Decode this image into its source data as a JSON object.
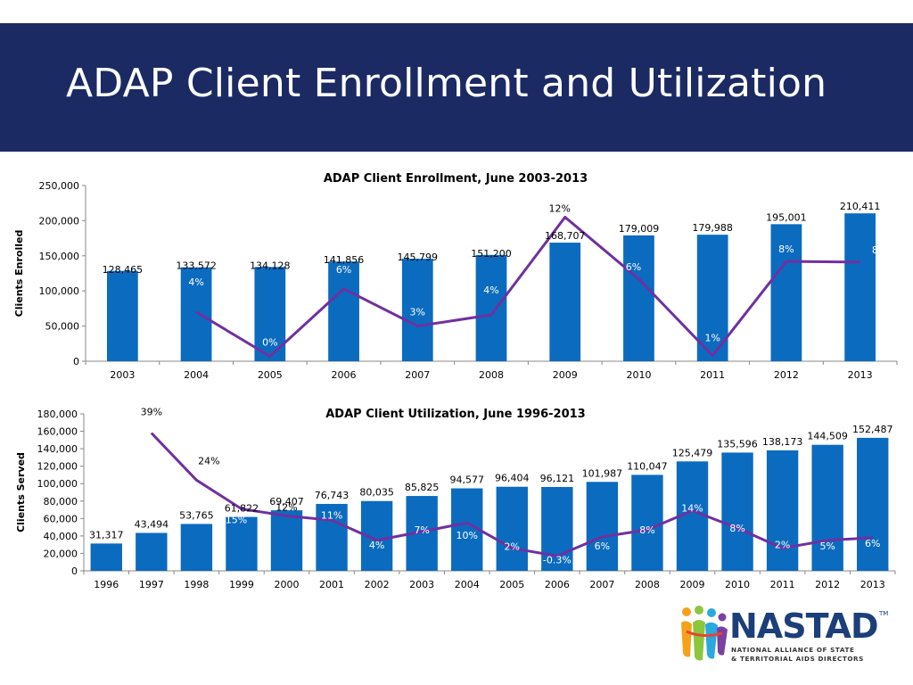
{
  "slide": {
    "title": "ADAP Client Enrollment and Utilization"
  },
  "logo": {
    "name": "NASTAD",
    "trademark": "TM",
    "line1": "NATIONAL ALLIANCE OF STATE",
    "line2": "& TERRITORIAL AIDS DIRECTORS"
  },
  "colors": {
    "header": "#1c2a63",
    "bar": "#0b6bbf",
    "line": "#7030a0"
  },
  "chart_data": [
    {
      "type": "bar",
      "title": "ADAP Client Enrollment, June 2003-2013",
      "xlabel": "",
      "ylabel": "Clients Enrolled",
      "ylim": [
        0,
        250000
      ],
      "yticks": [
        "0",
        "50,000",
        "100,000",
        "150,000",
        "200,000",
        "250,000"
      ],
      "ytick_values": [
        0,
        50000,
        100000,
        150000,
        200000,
        250000
      ],
      "categories": [
        "2003",
        "2004",
        "2005",
        "2006",
        "2007",
        "2008",
        "2009",
        "2010",
        "2011",
        "2012",
        "2013"
      ],
      "values": [
        128465,
        133572,
        134128,
        141856,
        145799,
        151200,
        168707,
        179009,
        179988,
        195001,
        210411
      ],
      "value_labels": [
        "128,465",
        "133,572",
        "134,128",
        "141,856",
        "145,799",
        "151,200",
        "168,707",
        "179,009",
        "179,988",
        "195,001",
        "210,411"
      ],
      "line_series": {
        "labels": [
          "",
          "4%",
          "0%",
          "6%",
          "3%",
          "4%",
          "12%",
          "6%",
          "1%",
          "8%",
          "8%"
        ],
        "values": [
          null,
          70000,
          7000,
          103000,
          50000,
          66000,
          205000,
          117000,
          8000,
          142000,
          141000
        ]
      },
      "grid": false,
      "legend": "none"
    },
    {
      "type": "bar",
      "title": "ADAP Client Utilization, June 1996-2013",
      "xlabel": "",
      "ylabel": "Clients Served",
      "ylim": [
        0,
        180000
      ],
      "yticks": [
        "0",
        "20,000",
        "40,000",
        "60,000",
        "80,000",
        "100,000",
        "120,000",
        "140,000",
        "160,000",
        "180,000"
      ],
      "ytick_values": [
        0,
        20000,
        40000,
        60000,
        80000,
        100000,
        120000,
        140000,
        160000,
        180000
      ],
      "categories": [
        "1996",
        "1997",
        "1998",
        "1999",
        "2000",
        "2001",
        "2002",
        "2003",
        "2004",
        "2005",
        "2006",
        "2007",
        "2008",
        "2009",
        "2010",
        "2011",
        "2012",
        "2013"
      ],
      "values": [
        31317,
        43494,
        53765,
        61822,
        69407,
        76743,
        80035,
        85825,
        94577,
        96404,
        96121,
        101987,
        110047,
        125479,
        135596,
        138173,
        144509,
        152487
      ],
      "value_labels": [
        "31,317",
        "43,494",
        "53,765",
        "61,822",
        "69,407",
        "76,743",
        "80,035",
        "85,825",
        "94,577",
        "96,404",
        "96,121",
        "101,987",
        "110,047",
        "125,479",
        "135,596",
        "138,173",
        "144,509",
        "152,487"
      ],
      "line_series": {
        "labels": [
          "",
          "39%",
          "24%",
          "15%",
          "12%",
          "11%",
          "4%",
          "7%",
          "10%",
          "2%",
          "-0.3%",
          "6%",
          "8%",
          "14%",
          "8%",
          "2%",
          "5%",
          "6%"
        ],
        "values": [
          null,
          158000,
          104000,
          71000,
          63000,
          58000,
          35000,
          45000,
          55000,
          26000,
          17000,
          39000,
          47000,
          69000,
          49000,
          26000,
          35000,
          38000
        ]
      },
      "grid": false,
      "legend": "none"
    }
  ]
}
